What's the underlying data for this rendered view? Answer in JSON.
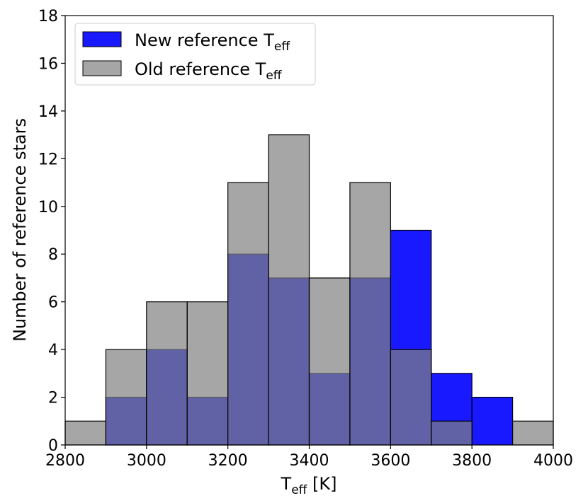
{
  "chart_data": {
    "type": "bar",
    "title": "",
    "xlabel_main": "T",
    "xlabel_sub": "eff",
    "xlabel_unit": " [K]",
    "ylabel": "Number of reference stars",
    "xlim": [
      2800,
      4000
    ],
    "ylim": [
      0,
      18
    ],
    "xticks": [
      2800,
      3000,
      3200,
      3400,
      3600,
      3800,
      4000
    ],
    "yticks": [
      0,
      2,
      4,
      6,
      8,
      10,
      12,
      14,
      16,
      18
    ],
    "bin_edges": [
      2800,
      2900,
      3000,
      3100,
      3200,
      3300,
      3400,
      3500,
      3600,
      3700,
      3800,
      3900,
      4000
    ],
    "grid": false,
    "legend_position": "top-left",
    "series": [
      {
        "name_main": "New reference T",
        "name_sub": "eff",
        "color": "#0000ff",
        "values": [
          0,
          2,
          4,
          2,
          8,
          7,
          3,
          7,
          9,
          3,
          2,
          0
        ]
      },
      {
        "name_main": "Old reference T",
        "name_sub": "eff",
        "color": "#808080",
        "values": [
          1,
          4,
          6,
          6,
          11,
          13,
          7,
          11,
          4,
          1,
          0,
          1
        ]
      }
    ]
  }
}
